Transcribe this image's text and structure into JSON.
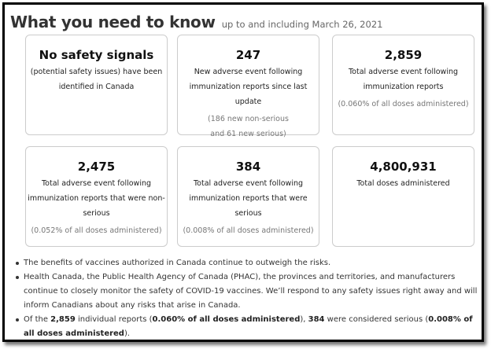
{
  "header": {
    "title": "What you need to know",
    "subtitle": "up to and including March 26, 2021"
  },
  "cards": [
    {
      "headline": "No safety signals",
      "description": "(potential safety issues) have been identified in Canada"
    },
    {
      "headline": "247",
      "description": "New adverse event following immunization reports since last update",
      "note": "(186 new non-serious and 61 new serious)"
    },
    {
      "headline": "2,859",
      "description": "Total adverse event following immunization reports",
      "note": "(0.060% of all doses administered)"
    },
    {
      "headline": "2,475",
      "description": "Total adverse event following immunization reports that were non-serious",
      "note": "(0.052% of all doses administered)"
    },
    {
      "headline": "384",
      "description": "Total adverse event following immunization reports that were serious",
      "note": "(0.008% of all doses administered)"
    },
    {
      "headline": "4,800,931",
      "description": "Total doses administered"
    }
  ],
  "bullets": {
    "b1": "The benefits of vaccines authorized in Canada continue to outweigh the risks.",
    "b2": "Health Canada, the Public Health Agency of Canada (PHAC), the provinces and territories, and manufacturers continue to closely monitor the safety of COVID-19 vaccines. We’ll respond to any safety issues right away and will inform Canadians about any risks that arise in Canada.",
    "b3": {
      "p1": "Of the ",
      "b1": "2,859",
      "p2": " individual reports (",
      "b2": "0.060% of all doses administered",
      "p3": "), ",
      "b3": "384",
      "p4": " were considered serious (",
      "b4": "0.008% of all doses administered",
      "p5": ")."
    }
  }
}
